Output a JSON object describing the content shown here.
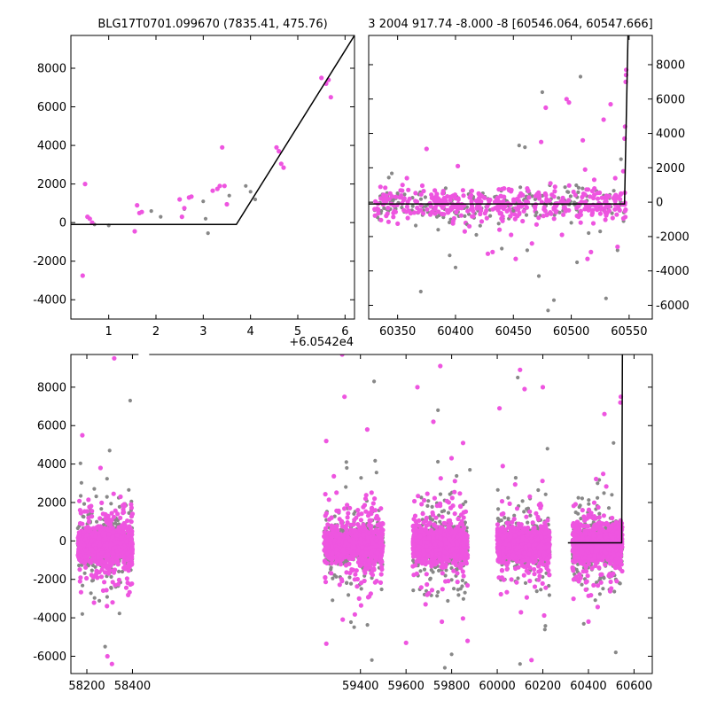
{
  "chart_data": [
    {
      "id": "panel-a",
      "type": "scatter",
      "title": "BLG17T0701.099670 (7835.41, 475.76)",
      "xlim": [
        0.2,
        6.2
      ],
      "ylim": [
        -5000,
        9700
      ],
      "xticks": [
        1,
        2,
        3,
        4,
        5,
        6
      ],
      "yticks": [
        -4000,
        -2000,
        0,
        2000,
        4000,
        6000,
        8000
      ],
      "x_offset_label": "+6.0542e4",
      "y_axis_side": "left",
      "series": [
        {
          "color": "#888888",
          "points": [
            [
              0.7,
              -100
            ],
            [
              1.0,
              -150
            ],
            [
              1.9,
              600
            ],
            [
              2.1,
              300
            ],
            [
              2.6,
              700
            ],
            [
              3.0,
              1100
            ],
            [
              3.05,
              200
            ],
            [
              3.1,
              -550
            ],
            [
              3.55,
              1400
            ],
            [
              3.9,
              1900
            ],
            [
              4.0,
              1600
            ],
            [
              4.1,
              1200
            ],
            [
              4.6,
              3700
            ]
          ]
        },
        {
          "color": "#ee55e0",
          "points": [
            [
              0.45,
              -2750
            ],
            [
              0.5,
              2000
            ],
            [
              0.55,
              300
            ],
            [
              0.6,
              200
            ],
            [
              0.65,
              0
            ],
            [
              1.55,
              -450
            ],
            [
              1.6,
              900
            ],
            [
              1.65,
              500
            ],
            [
              1.7,
              550
            ],
            [
              2.5,
              1200
            ],
            [
              2.55,
              300
            ],
            [
              2.6,
              750
            ],
            [
              2.7,
              1300
            ],
            [
              2.75,
              1350
            ],
            [
              3.2,
              1650
            ],
            [
              3.3,
              1750
            ],
            [
              3.35,
              1900
            ],
            [
              3.4,
              3900
            ],
            [
              3.45,
              1900
            ],
            [
              3.5,
              950
            ],
            [
              4.55,
              3900
            ],
            [
              4.6,
              3700
            ],
            [
              4.65,
              3050
            ],
            [
              4.7,
              2850
            ],
            [
              5.5,
              7500
            ],
            [
              5.6,
              7200
            ],
            [
              5.65,
              7400
            ],
            [
              5.7,
              6500
            ]
          ]
        }
      ],
      "model": [
        [
          0.2,
          -100
        ],
        [
          3.7,
          -100
        ],
        [
          6.2,
          9700
        ]
      ]
    },
    {
      "id": "panel-b",
      "type": "scatter",
      "title": "3 2004 917.74 -8.000 -8 [60546.064, 60547.666]",
      "xlim": [
        60325,
        60570
      ],
      "ylim": [
        -6800,
        9700
      ],
      "xticks": [
        60350,
        60400,
        60450,
        60500,
        60550
      ],
      "yticks": [
        -6000,
        -4000,
        -2000,
        0,
        2000,
        4000,
        6000,
        8000
      ],
      "y_axis_side": "right",
      "series": [
        {
          "color": "#888888",
          "points": [
            [
              60370,
              -5200
            ],
            [
              60385,
              -1600
            ],
            [
              60395,
              -3100
            ],
            [
              60400,
              -3800
            ],
            [
              60410,
              -1300
            ],
            [
              60418,
              -1900
            ],
            [
              60430,
              -800
            ],
            [
              60440,
              -2700
            ],
            [
              60450,
              -500
            ],
            [
              60455,
              3300
            ],
            [
              60460,
              3200
            ],
            [
              60462,
              -2800
            ],
            [
              60470,
              -600
            ],
            [
              60472,
              -4300
            ],
            [
              60475,
              6400
            ],
            [
              60480,
              -6300
            ],
            [
              60485,
              -5700
            ],
            [
              60490,
              -600
            ],
            [
              60500,
              -1200
            ],
            [
              60505,
              -3500
            ],
            [
              60508,
              7300
            ],
            [
              60515,
              -1800
            ],
            [
              60525,
              -1700
            ],
            [
              60530,
              -5600
            ],
            [
              60540,
              -2800
            ],
            [
              60543,
              2500
            ]
          ]
        },
        {
          "color": "#ee55e0",
          "points": [
            [
              60358,
              1400
            ],
            [
              60375,
              3100
            ],
            [
              60390,
              -700
            ],
            [
              60398,
              -1100
            ],
            [
              60402,
              2100
            ],
            [
              60408,
              -1700
            ],
            [
              60412,
              -1400
            ],
            [
              60420,
              500
            ],
            [
              60428,
              -3000
            ],
            [
              60432,
              -2900
            ],
            [
              60438,
              -1600
            ],
            [
              60442,
              800
            ],
            [
              60448,
              -1900
            ],
            [
              60452,
              -3300
            ],
            [
              60455,
              -700
            ],
            [
              60458,
              -1100
            ],
            [
              60462,
              800
            ],
            [
              60466,
              -2400
            ],
            [
              60470,
              -1300
            ],
            [
              60474,
              3500
            ],
            [
              60476,
              -800
            ],
            [
              60478,
              5500
            ],
            [
              60482,
              1100
            ],
            [
              60486,
              900
            ],
            [
              60492,
              -1900
            ],
            [
              60496,
              6000
            ],
            [
              60498,
              5800
            ],
            [
              60502,
              600
            ],
            [
              60505,
              -800
            ],
            [
              60510,
              3600
            ],
            [
              60512,
              1900
            ],
            [
              60514,
              -3300
            ],
            [
              60517,
              -2900
            ],
            [
              60520,
              800
            ],
            [
              60528,
              4800
            ],
            [
              60534,
              5700
            ],
            [
              60538,
              1400
            ],
            [
              60540,
              -2600
            ],
            [
              60543,
              500
            ],
            [
              60545,
              1800
            ],
            [
              60546,
              3700
            ],
            [
              60546.5,
              4400
            ],
            [
              60547,
              7000
            ],
            [
              60547.3,
              7400
            ],
            [
              60547.5,
              7700
            ]
          ]
        }
      ],
      "band": {
        "x_range": [
          60330,
          60547
        ],
        "y_center": -100,
        "y_spread": 500
      },
      "model": [
        [
          60325,
          -100
        ],
        [
          60546,
          -100
        ],
        [
          60549,
          9700
        ]
      ]
    },
    {
      "id": "panel-c",
      "type": "scatter",
      "title": "",
      "xlim": [
        58130,
        60680
      ],
      "ylim": [
        -6900,
        9700
      ],
      "xticks": [
        58200,
        58400,
        59400,
        59600,
        59800,
        60000,
        60200,
        60400,
        60600
      ],
      "yticks": [
        -6000,
        -4000,
        -2000,
        0,
        2000,
        4000,
        6000,
        8000
      ],
      "y_axis_side": "left",
      "seasons": [
        [
          58160,
          58400
        ],
        [
          59240,
          59500
        ],
        [
          59630,
          59870
        ],
        [
          60000,
          60230
        ],
        [
          60330,
          60548
        ]
      ],
      "series": [
        {
          "color": "#888888",
          "points": [
            [
              58300,
              4700
            ],
            [
              58390,
              7300
            ],
            [
              58180,
              -3800
            ],
            [
              58280,
              -5500
            ],
            [
              59340,
              3800
            ],
            [
              59460,
              8300
            ],
            [
              59450,
              -6200
            ],
            [
              59740,
              6800
            ],
            [
              59770,
              -6600
            ],
            [
              59800,
              -5900
            ],
            [
              59880,
              3700
            ],
            [
              60090,
              8500
            ],
            [
              60100,
              -6400
            ],
            [
              60220,
              4800
            ],
            [
              60440,
              3000
            ],
            [
              60510,
              5100
            ],
            [
              60520,
              -5800
            ]
          ]
        },
        {
          "color": "#ee55e0",
          "points": [
            [
              58180,
              5500
            ],
            [
              58320,
              9500
            ],
            [
              58260,
              3800
            ],
            [
              58290,
              -6000
            ],
            [
              58310,
              -6400
            ],
            [
              59250,
              5200
            ],
            [
              59320,
              9700
            ],
            [
              59330,
              7500
            ],
            [
              59430,
              5800
            ],
            [
              59600,
              -5300
            ],
            [
              59650,
              8000
            ],
            [
              59720,
              6200
            ],
            [
              59750,
              9100
            ],
            [
              59850,
              5100
            ],
            [
              59870,
              -5200
            ],
            [
              60010,
              6900
            ],
            [
              60100,
              8900
            ],
            [
              60120,
              7900
            ],
            [
              60200,
              8000
            ],
            [
              60150,
              -6200
            ],
            [
              60470,
              6600
            ],
            [
              60540,
              7200
            ],
            [
              60542,
              7500
            ],
            [
              60400,
              -4200
            ]
          ]
        }
      ],
      "model": [
        [
          60310,
          -100
        ],
        [
          60546,
          -100
        ],
        [
          60549,
          9700
        ]
      ]
    }
  ]
}
